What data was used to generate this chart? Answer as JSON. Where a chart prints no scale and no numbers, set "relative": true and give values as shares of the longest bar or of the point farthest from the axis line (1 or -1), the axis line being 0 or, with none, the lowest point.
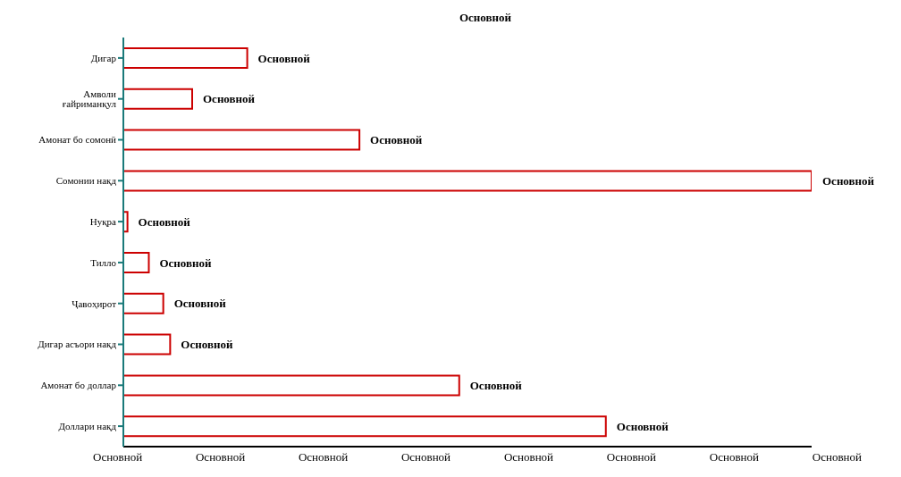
{
  "chart_data": {
    "type": "bar",
    "orientation": "horizontal",
    "title": "Основной",
    "categories": [
      "Дигар",
      "Амволи ғайриманқул",
      "Амонат бо сомонӣ",
      "Сомонии нақд",
      "Нуқра",
      "Тилло",
      "Ҷавоҳирот",
      "Дигар асъори нақд",
      "Амонат бо доллар",
      "Доллари нақд"
    ],
    "values": [
      0.18,
      0.1,
      0.343,
      1,
      0.006,
      0.037,
      0.058,
      0.068,
      0.488,
      0.701
    ],
    "relative": true,
    "color": "#cc0000",
    "annotations": [
      {
        "text": "Основной",
        "x": 0.18,
        "y": "Дигар"
      },
      {
        "text": "Основной",
        "x": 0.1,
        "y": "Амволи ғайриманқул"
      },
      {
        "text": "Основной",
        "x": 0.343,
        "y": "Амонат бо сомонӣ"
      },
      {
        "text": "Основной",
        "x": 1,
        "y": "Сомонии нақд"
      },
      {
        "text": "Основной",
        "x": 0.006,
        "y": "Нуқра"
      },
      {
        "text": "Основной",
        "x": 0.037,
        "y": "Тилло"
      },
      {
        "text": "Основной",
        "x": 0.058,
        "y": "Ҷавоҳирот"
      },
      {
        "text": "Основной",
        "x": 0.068,
        "y": "Дигар асъори нақд"
      },
      {
        "text": "Основной",
        "x": 0.488,
        "y": "Амонат бо доллар"
      },
      {
        "text": "Основной",
        "x": 0.701,
        "y": "Доллари нақд"
      },
      "Основной",
      "Основной",
      "Основной",
      "Основной",
      "Основной",
      "Основной",
      "Основной",
      "Основной"
    ],
    "grid": false,
    "legend": false
  }
}
